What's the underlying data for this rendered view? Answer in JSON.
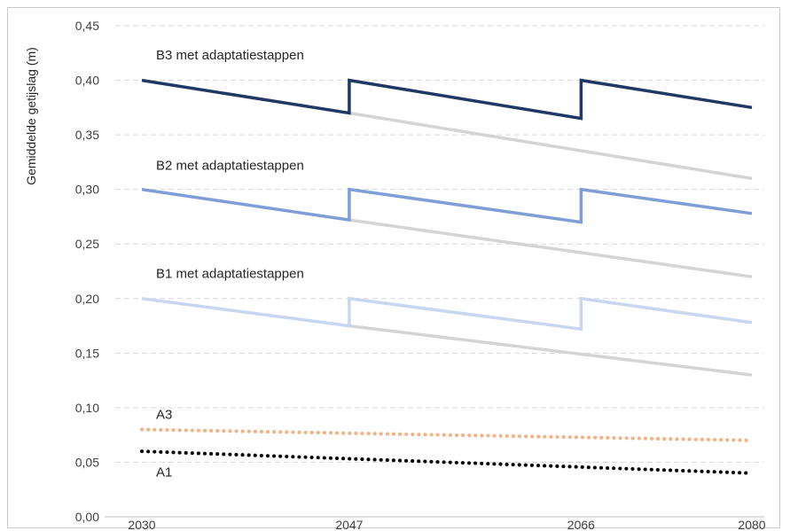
{
  "chart_data": {
    "type": "line",
    "xlabel": "",
    "ylabel": "Gemiddelde getijslag (m)",
    "x_ticks": [
      2030,
      2047,
      2066,
      2080
    ],
    "ylim": [
      0,
      0.45
    ],
    "y_ticks": [
      "0,00",
      "0,05",
      "0,10",
      "0,15",
      "0,20",
      "0,25",
      "0,30",
      "0,35",
      "0,40",
      "0,45"
    ],
    "grid": "horizontal-dashed",
    "series": [
      {
        "name": "",
        "color": "#d4d4d4",
        "style": "solid",
        "points": [
          [
            2047,
            0.37
          ],
          [
            2080,
            0.31
          ]
        ]
      },
      {
        "name": "",
        "color": "#d4d4d4",
        "style": "solid",
        "points": [
          [
            2047,
            0.272
          ],
          [
            2080,
            0.22
          ]
        ]
      },
      {
        "name": "",
        "color": "#d4d4d4",
        "style": "solid",
        "points": [
          [
            2047,
            0.175
          ],
          [
            2080,
            0.13
          ]
        ]
      },
      {
        "name": "B3 met adaptatiestappen",
        "color": "#1f3864",
        "style": "solid",
        "points": [
          [
            2030,
            0.4
          ],
          [
            2047,
            0.37
          ],
          [
            2047,
            0.4
          ],
          [
            2066,
            0.365
          ],
          [
            2066,
            0.4
          ],
          [
            2080,
            0.375
          ]
        ]
      },
      {
        "name": "B2 met adaptatiestappen",
        "color": "#7f9ed8",
        "style": "solid",
        "points": [
          [
            2030,
            0.3
          ],
          [
            2047,
            0.272
          ],
          [
            2047,
            0.3
          ],
          [
            2066,
            0.27
          ],
          [
            2066,
            0.3
          ],
          [
            2080,
            0.278
          ]
        ]
      },
      {
        "name": "B1 met adaptatiestappen",
        "color": "#c9d6ef",
        "style": "solid",
        "points": [
          [
            2030,
            0.2
          ],
          [
            2047,
            0.175
          ],
          [
            2047,
            0.2
          ],
          [
            2066,
            0.172
          ],
          [
            2066,
            0.2
          ],
          [
            2080,
            0.178
          ]
        ]
      },
      {
        "name": "A3",
        "color": "#f4b183",
        "style": "dotted",
        "points": [
          [
            2030,
            0.08
          ],
          [
            2080,
            0.07
          ]
        ]
      },
      {
        "name": "A1",
        "color": "#000000",
        "style": "dotted",
        "points": [
          [
            2030,
            0.06
          ],
          [
            2080,
            0.04
          ]
        ]
      }
    ],
    "annotations": [
      {
        "text": "B3 met adaptatiestappen",
        "x": 2030,
        "y": 0.423
      },
      {
        "text": "B2 met adaptatiestappen",
        "x": 2030,
        "y": 0.322
      },
      {
        "text": "B1 met adaptatiestappen",
        "x": 2030,
        "y": 0.223
      },
      {
        "text": "A3",
        "x": 2030,
        "y": 0.094
      },
      {
        "text": "A1",
        "x": 2030,
        "y": 0.041
      }
    ]
  }
}
